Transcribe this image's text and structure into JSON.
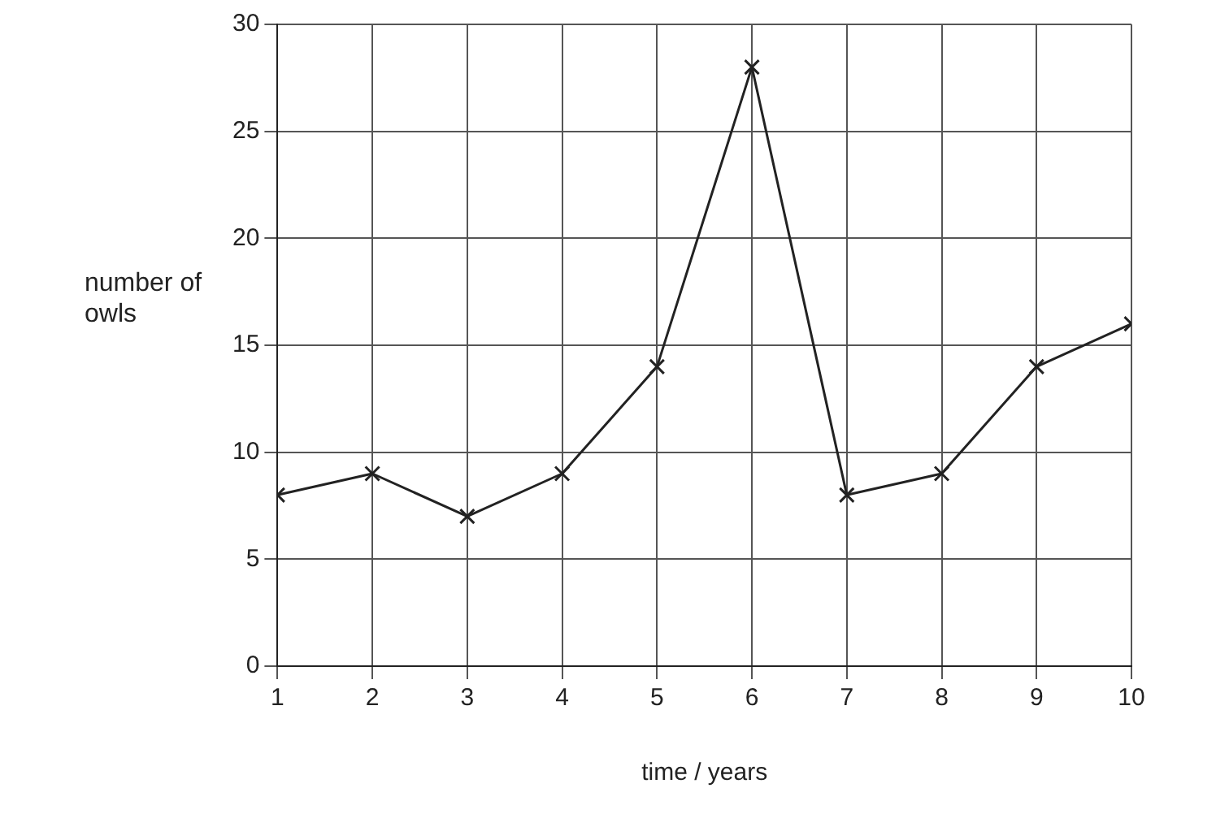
{
  "chart_data": {
    "type": "line",
    "xlabel": "time / years",
    "ylabel": "number of owls",
    "x": [
      1,
      2,
      3,
      4,
      5,
      6,
      7,
      8,
      9,
      10
    ],
    "series": [
      {
        "color": "#222222",
        "values": [
          8,
          9,
          7,
          9,
          14,
          28,
          8,
          9,
          14,
          16
        ]
      }
    ],
    "xlim": [
      1,
      10
    ],
    "xticks": [
      1,
      2,
      3,
      4,
      5,
      6,
      7,
      8,
      9,
      10
    ],
    "ylim": [
      0,
      30
    ],
    "yticks": [
      0,
      5,
      10,
      15,
      20,
      25,
      30
    ],
    "grid": true,
    "marker": "cross",
    "line_style": "solid",
    "legend": false
  }
}
